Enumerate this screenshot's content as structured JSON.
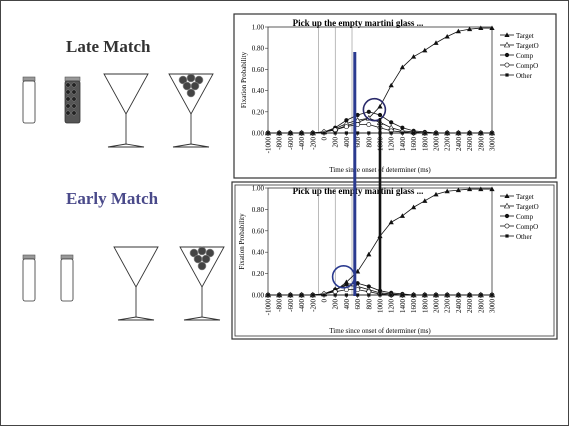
{
  "slide": {
    "late_label": "Late Match",
    "early_label": "Early Match",
    "late_color": "#333333",
    "early_color": "#4a4a8a",
    "vline_blue": "#2a3a8f",
    "vline_black": "#111111"
  },
  "chart_data": [
    {
      "type": "line",
      "title": "Pick up  the empty martini glass ...",
      "xlabel": "Time since onset of determiner (ms)",
      "ylabel": "Fixation Probability",
      "xlim": [
        -1000,
        3000
      ],
      "ylim": [
        0,
        1.0
      ],
      "x_ticks": [
        -1000,
        -800,
        -600,
        -400,
        -200,
        0,
        200,
        400,
        600,
        800,
        1000,
        1200,
        1400,
        1600,
        1800,
        2000,
        2200,
        2400,
        2600,
        2800,
        3000
      ],
      "y_ticks": [
        "0.00",
        "0.20",
        "0.40",
        "0.60",
        "0.80",
        "1.00"
      ],
      "legend": [
        "Target",
        "TargetO",
        "Comp",
        "CompO",
        "Other"
      ],
      "legend_position": "right",
      "x": [
        -1000,
        -800,
        -600,
        -400,
        -200,
        0,
        200,
        400,
        600,
        800,
        1000,
        1200,
        1400,
        1600,
        1800,
        2000,
        2200,
        2400,
        2600,
        2800,
        3000
      ],
      "series": [
        {
          "name": "Target",
          "values": [
            0,
            0,
            0,
            0,
            0,
            0.01,
            0.03,
            0.07,
            0.1,
            0.14,
            0.25,
            0.45,
            0.62,
            0.72,
            0.78,
            0.85,
            0.91,
            0.96,
            0.98,
            0.99,
            0.99
          ]
        },
        {
          "name": "TargetO",
          "values": [
            0,
            0,
            0,
            0,
            0,
            0.01,
            0.04,
            0.09,
            0.12,
            0.14,
            0.1,
            0.05,
            0.02,
            0.01,
            0,
            0,
            0,
            0,
            0,
            0,
            0
          ]
        },
        {
          "name": "Comp",
          "values": [
            0,
            0,
            0,
            0,
            0,
            0.01,
            0.05,
            0.12,
            0.17,
            0.2,
            0.17,
            0.1,
            0.05,
            0.02,
            0.01,
            0,
            0,
            0,
            0,
            0,
            0
          ]
        },
        {
          "name": "CompO",
          "values": [
            0,
            0,
            0,
            0,
            0,
            0.01,
            0.03,
            0.06,
            0.08,
            0.08,
            0.05,
            0.02,
            0.01,
            0,
            0,
            0,
            0,
            0,
            0,
            0,
            0
          ]
        },
        {
          "name": "Other",
          "values": [
            0,
            0,
            0,
            0,
            0,
            0,
            0,
            0,
            0,
            0,
            0,
            0,
            0,
            0,
            0,
            0,
            0,
            0,
            0,
            0,
            0
          ]
        }
      ]
    },
    {
      "type": "line",
      "title": "Pick up  the empty martini glass ...",
      "xlabel": "Time since onset of determiner (ms)",
      "ylabel": "Fixation Probability",
      "xlim": [
        -1000,
        3000
      ],
      "ylim": [
        0,
        1.0
      ],
      "x_ticks": [
        -1000,
        -800,
        -600,
        -400,
        -200,
        0,
        200,
        400,
        600,
        800,
        1000,
        1200,
        1400,
        1600,
        1800,
        2000,
        2200,
        2400,
        2600,
        2800,
        3000
      ],
      "y_ticks": [
        "0.00",
        "0.20",
        "0.40",
        "0.60",
        "0.80",
        "1.00"
      ],
      "legend": [
        "Target",
        "TargetO",
        "Comp",
        "CompO",
        "Other"
      ],
      "legend_position": "right",
      "x": [
        -1000,
        -800,
        -600,
        -400,
        -200,
        0,
        200,
        400,
        600,
        800,
        1000,
        1200,
        1400,
        1600,
        1800,
        2000,
        2200,
        2400,
        2600,
        2800,
        3000
      ],
      "series": [
        {
          "name": "Target",
          "values": [
            0,
            0,
            0,
            0,
            0,
            0.01,
            0.04,
            0.12,
            0.22,
            0.38,
            0.55,
            0.68,
            0.74,
            0.82,
            0.88,
            0.94,
            0.97,
            0.98,
            0.99,
            0.99,
            0.99
          ]
        },
        {
          "name": "TargetO",
          "values": [
            0,
            0,
            0,
            0,
            0,
            0.01,
            0.05,
            0.09,
            0.08,
            0.05,
            0.02,
            0.01,
            0,
            0,
            0,
            0,
            0,
            0,
            0,
            0,
            0
          ]
        },
        {
          "name": "Comp",
          "values": [
            0,
            0,
            0,
            0,
            0,
            0.01,
            0.05,
            0.1,
            0.11,
            0.08,
            0.04,
            0.02,
            0.01,
            0,
            0,
            0,
            0,
            0,
            0,
            0,
            0
          ]
        },
        {
          "name": "CompO",
          "values": [
            0,
            0,
            0,
            0,
            0,
            0.01,
            0.03,
            0.05,
            0.05,
            0.03,
            0.01,
            0,
            0,
            0,
            0,
            0,
            0,
            0,
            0,
            0,
            0
          ]
        },
        {
          "name": "Other",
          "values": [
            0,
            0,
            0,
            0,
            0,
            0,
            0,
            0,
            0,
            0,
            0,
            0,
            0,
            0,
            0,
            0,
            0,
            0,
            0,
            0,
            0
          ]
        }
      ]
    }
  ]
}
